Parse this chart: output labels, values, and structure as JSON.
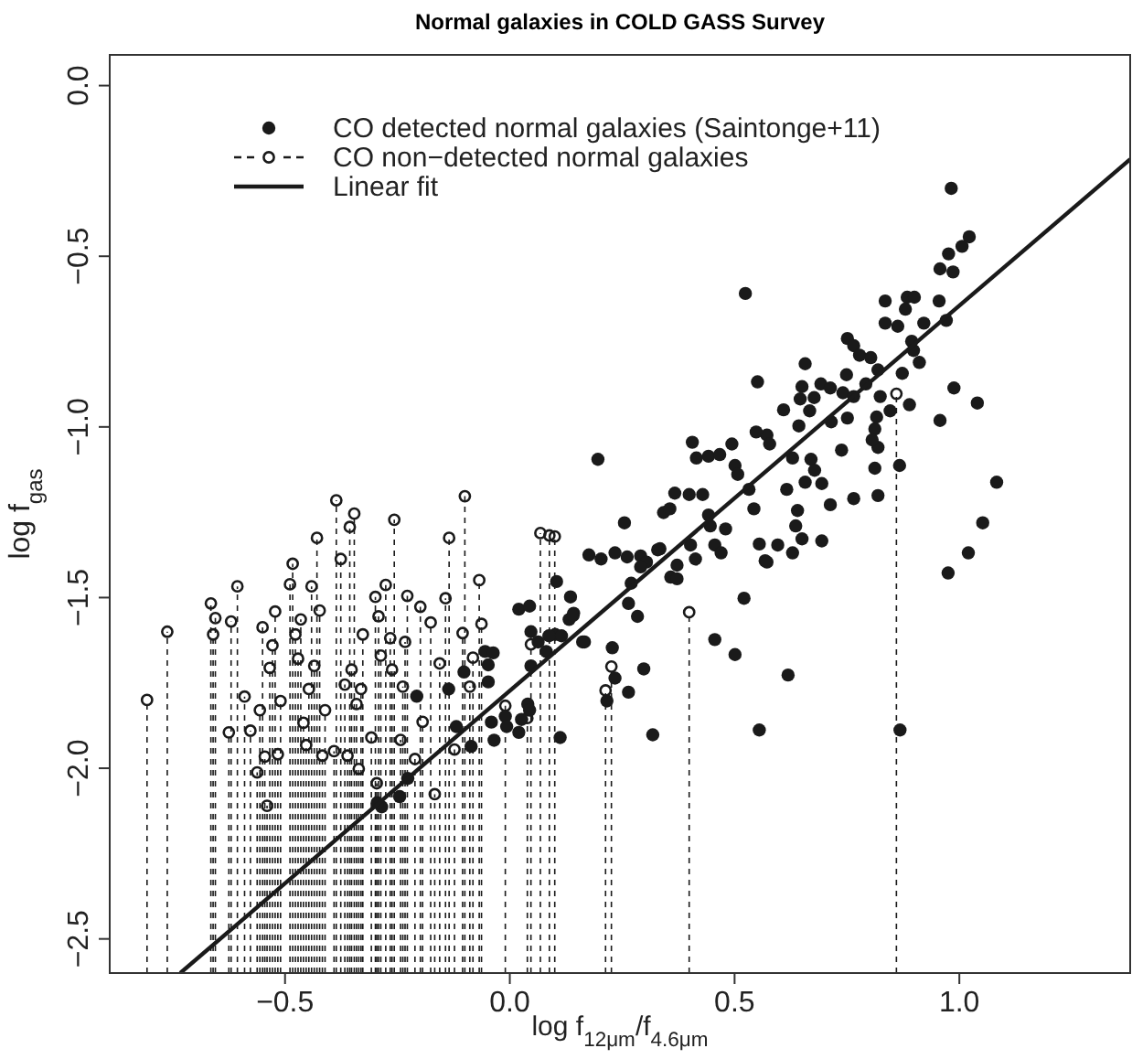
{
  "chart_data": {
    "type": "scatter",
    "title": "Normal galaxies in COLD GASS Survey",
    "xlabel": "log f$_{12μm}$/f$_{4.6μm}$",
    "ylabel": "log f$_{gas}$",
    "xlim": [
      -0.89,
      1.38
    ],
    "ylim": [
      -2.6,
      0.09
    ],
    "xticks": [
      {
        "value": -0.5,
        "label": "−0.5"
      },
      {
        "value": 0,
        "label": "0.0"
      },
      {
        "value": 0.5,
        "label": "0.5"
      },
      {
        "value": 1,
        "label": "1.0"
      }
    ],
    "yticks": [
      {
        "value": -2.5,
        "label": "−2.5"
      },
      {
        "value": -2,
        "label": "−2.0"
      },
      {
        "value": -1.5,
        "label": "−1.5"
      },
      {
        "value": -1,
        "label": "−1.0"
      },
      {
        "value": -0.5,
        "label": "−0.5"
      },
      {
        "value": 0,
        "label": "0.0"
      }
    ],
    "legend": "top left",
    "grid": false,
    "series": [
      {
        "name": "CO detected normal galaxies (Saintonge+11)",
        "marker": "circle",
        "color": "#1a1a1a",
        "x": [
          0.982,
          1.022,
          1.006,
          0.976,
          0.957,
          0.986,
          0.524,
          0.835,
          0.884,
          0.9,
          0.955,
          0.88,
          0.835,
          0.863,
          0.921,
          0.971,
          0.894,
          0.751,
          0.765,
          0.898,
          0.778,
          0.803,
          0.911,
          0.657,
          0.819,
          0.749,
          0.551,
          0.692,
          0.713,
          0.65,
          0.792,
          0.873,
          0.988,
          0.741,
          0.646,
          0.677,
          0.765,
          0.824,
          1.04,
          0.609,
          0.667,
          0.846,
          0.889,
          0.715,
          0.751,
          0.816,
          0.957,
          0.643,
          0.812,
          0.572,
          0.548,
          0.494,
          0.578,
          0.406,
          0.819,
          0.806,
          0.738,
          0.629,
          0.415,
          0.442,
          0.467,
          0.501,
          0.67,
          0.812,
          0.867,
          0.196,
          0.507,
          0.678,
          0.532,
          0.657,
          0.616,
          0.694,
          0.765,
          0.819,
          1.083,
          0.367,
          0.399,
          0.429,
          0.342,
          0.356,
          0.442,
          0.543,
          0.64,
          0.713,
          0.255,
          0.446,
          0.48,
          0.636,
          0.65,
          0.694,
          1.052,
          0.402,
          0.456,
          0.555,
          0.596,
          0.334,
          1.02,
          0.176,
          0.203,
          0.234,
          0.261,
          0.291,
          0.304,
          0.413,
          0.568,
          0.975,
          0.521,
          0.456,
          0.501,
          0.619,
          0.555,
          0.868,
          0.318,
          0.298,
          0.264,
          0.234,
          0.228,
          0.216,
          0.166,
          0.284,
          0.264,
          0.27,
          0.142,
          0.132,
          0.135,
          0.104,
          0.101,
          0.112,
          0.329,
          0.358,
          0.372,
          0.372,
          0.47,
          0.572,
          0.629,
          0.291,
          0.02,
          0.044,
          0.047,
          0.087,
          0.115,
          0.063,
          0.081,
          0.141,
          0.162,
          -0.055,
          -0.037,
          -0.048,
          0.047,
          -0.102,
          -0.048,
          -0.136,
          -0.207,
          0.04,
          0.044,
          0.026,
          -0.041,
          -0.01,
          -0.007,
          0.02,
          -0.035,
          -0.119,
          -0.086,
          -0.227,
          -0.245,
          -0.285,
          -0.295
        ],
        "values": [
          -0.301,
          -0.443,
          -0.471,
          -0.493,
          -0.537,
          -0.546,
          -0.609,
          -0.631,
          -0.62,
          -0.62,
          -0.631,
          -0.655,
          -0.696,
          -0.705,
          -0.696,
          -0.688,
          -0.749,
          -0.741,
          -0.762,
          -0.776,
          -0.79,
          -0.797,
          -0.811,
          -0.815,
          -0.833,
          -0.847,
          -0.868,
          -0.874,
          -0.886,
          -0.882,
          -0.874,
          -0.843,
          -0.886,
          -0.9,
          -0.918,
          -0.914,
          -0.911,
          -0.911,
          -0.93,
          -0.95,
          -0.953,
          -0.953,
          -0.935,
          -0.985,
          -0.974,
          -0.971,
          -0.981,
          -0.997,
          -1.006,
          -1.024,
          -1.015,
          -1.05,
          -1.05,
          -1.045,
          -1.06,
          -1.038,
          -1.068,
          -1.091,
          -1.091,
          -1.086,
          -1.081,
          -1.113,
          -1.095,
          -1.121,
          -1.113,
          -1.095,
          -1.139,
          -1.127,
          -1.183,
          -1.162,
          -1.183,
          -1.166,
          -1.21,
          -1.201,
          -1.162,
          -1.194,
          -1.198,
          -1.198,
          -1.251,
          -1.24,
          -1.258,
          -1.24,
          -1.245,
          -1.228,
          -1.281,
          -1.29,
          -1.299,
          -1.29,
          -1.328,
          -1.334,
          -1.281,
          -1.346,
          -1.346,
          -1.343,
          -1.346,
          -1.357,
          -1.369,
          -1.375,
          -1.387,
          -1.369,
          -1.381,
          -1.378,
          -1.396,
          -1.387,
          -1.392,
          -1.428,
          -1.502,
          -1.623,
          -1.667,
          -1.727,
          -1.888,
          -1.888,
          -1.902,
          -1.709,
          -1.777,
          -1.736,
          -1.647,
          -1.803,
          -1.63,
          -1.555,
          -1.517,
          -1.458,
          -1.546,
          -1.564,
          -1.498,
          -1.453,
          -1.608,
          -1.91,
          -1.36,
          -1.44,
          -1.445,
          -1.405,
          -1.369,
          -1.396,
          -1.369,
          -1.41,
          -1.534,
          -1.525,
          -1.6,
          -1.612,
          -1.612,
          -1.63,
          -1.658,
          -1.552,
          -1.63,
          -1.658,
          -1.662,
          -1.697,
          -1.7,
          -1.718,
          -1.747,
          -1.768,
          -1.789,
          -1.812,
          -1.83,
          -1.857,
          -1.865,
          -1.848,
          -1.878,
          -1.895,
          -1.918,
          -1.878,
          -1.936,
          -2.03,
          -2.083,
          -2.113,
          -2.101
        ]
      },
      {
        "name": "CO non−detected normal galaxies",
        "marker": "circle",
        "line_style": "dashed",
        "color": "#1a1a1a",
        "x": [
          -0.807,
          -0.762,
          -0.665,
          -0.655,
          -0.66,
          -0.62,
          -0.606,
          -0.625,
          -0.59,
          -0.577,
          -0.55,
          -0.556,
          -0.545,
          -0.534,
          -0.562,
          -0.54,
          -0.489,
          -0.483,
          -0.522,
          -0.528,
          -0.477,
          -0.465,
          -0.441,
          -0.429,
          -0.423,
          -0.435,
          -0.471,
          -0.51,
          -0.459,
          -0.447,
          -0.417,
          -0.411,
          -0.516,
          -0.453,
          -0.391,
          -0.376,
          -0.367,
          -0.356,
          -0.346,
          -0.352,
          -0.341,
          -0.361,
          -0.336,
          -0.327,
          -0.331,
          -0.308,
          -0.299,
          -0.292,
          -0.287,
          -0.276,
          -0.257,
          -0.266,
          -0.238,
          -0.228,
          -0.233,
          -0.262,
          -0.243,
          -0.296,
          -0.211,
          -0.199,
          -0.194,
          -0.176,
          -0.167,
          -0.156,
          -0.143,
          -0.135,
          -0.123,
          -0.105,
          -0.089,
          -0.082,
          -0.068,
          -0.063,
          -0.01,
          0.039,
          0.047,
          0.068,
          0.088,
          -0.386,
          -0.1,
          0.399,
          0.226,
          0.213,
          0.86,
          0.1
        ],
        "values": [
          -1.8,
          -1.6,
          -1.517,
          -1.56,
          -1.608,
          -1.57,
          -1.467,
          -1.895,
          -1.79,
          -1.89,
          -1.587,
          -1.83,
          -1.966,
          -1.706,
          -2.012,
          -2.11,
          -1.461,
          -1.401,
          -1.541,
          -1.64,
          -1.608,
          -1.564,
          -1.467,
          -1.325,
          -1.538,
          -1.7,
          -1.679,
          -1.803,
          -1.867,
          -1.768,
          -1.963,
          -1.83,
          -1.959,
          -1.932,
          -1.95,
          -1.387,
          -1.755,
          -1.293,
          -1.254,
          -1.711,
          -1.812,
          -1.963,
          -2.002,
          -1.608,
          -1.768,
          -1.91,
          -1.498,
          -1.555,
          -1.67,
          -1.463,
          -1.272,
          -1.619,
          -1.761,
          -1.495,
          -1.63,
          -1.711,
          -1.917,
          -2.044,
          -1.973,
          -1.527,
          -1.864,
          -1.573,
          -2.076,
          -1.693,
          -1.502,
          -1.325,
          -1.945,
          -1.604,
          -1.761,
          -1.676,
          -1.449,
          -1.577,
          -1.817,
          -1.853,
          -1.637,
          -1.311,
          -1.318,
          -1.215,
          -1.203,
          -1.543,
          -1.702,
          -1.772,
          -0.903,
          -1.321
        ],
        "errors": [
          [
            -2.6,
            -1.8
          ],
          [
            -2.6,
            -1.6
          ],
          [
            -2.6,
            -1.517
          ],
          [
            -2.6,
            -1.56
          ],
          [
            -2.6,
            -1.608
          ],
          [
            -2.6,
            -1.57
          ],
          [
            -2.6,
            -1.467
          ],
          [
            -2.6,
            -1.895
          ],
          [
            -2.6,
            -1.79
          ],
          [
            -2.6,
            -1.89
          ],
          [
            -2.6,
            -1.587
          ],
          [
            -2.6,
            -1.83
          ],
          [
            -2.6,
            -1.966
          ],
          [
            -2.6,
            -1.706
          ],
          [
            -2.6,
            -2.012
          ],
          [
            -2.6,
            -2.11
          ],
          [
            -2.6,
            -1.461
          ],
          [
            -2.6,
            -1.401
          ],
          [
            -2.6,
            -1.541
          ],
          [
            -2.6,
            -1.64
          ],
          [
            -2.6,
            -1.608
          ],
          [
            -2.6,
            -1.564
          ],
          [
            -2.6,
            -1.467
          ],
          [
            -2.6,
            -1.325
          ],
          [
            -2.6,
            -1.538
          ],
          [
            -2.6,
            -1.7
          ],
          [
            -2.6,
            -1.679
          ],
          [
            -2.6,
            -1.803
          ],
          [
            -2.6,
            -1.867
          ],
          [
            -2.6,
            -1.768
          ],
          [
            -2.6,
            -1.963
          ],
          [
            -2.6,
            -1.83
          ],
          [
            -2.6,
            -1.959
          ],
          [
            -2.6,
            -1.932
          ],
          [
            -2.6,
            -1.95
          ],
          [
            -2.6,
            -1.387
          ],
          [
            -2.6,
            -1.755
          ],
          [
            -2.6,
            -1.293
          ],
          [
            -2.6,
            -1.254
          ],
          [
            -2.6,
            -1.711
          ],
          [
            -2.6,
            -1.812
          ],
          [
            -2.6,
            -1.963
          ],
          [
            -2.6,
            -2.002
          ],
          [
            -2.6,
            -1.608
          ],
          [
            -2.6,
            -1.768
          ],
          [
            -2.6,
            -1.91
          ],
          [
            -2.6,
            -1.498
          ],
          [
            -2.6,
            -1.555
          ],
          [
            -2.6,
            -1.67
          ],
          [
            -2.6,
            -1.463
          ],
          [
            -2.6,
            -1.272
          ],
          [
            -2.6,
            -1.619
          ],
          [
            -2.6,
            -1.761
          ],
          [
            -2.6,
            -1.495
          ],
          [
            -2.6,
            -1.63
          ],
          [
            -2.6,
            -1.711
          ],
          [
            -2.6,
            -1.917
          ],
          [
            -2.6,
            -2.044
          ],
          [
            -2.6,
            -1.973
          ],
          [
            -2.6,
            -1.527
          ],
          [
            -2.6,
            -1.864
          ],
          [
            -2.6,
            -1.573
          ],
          [
            -2.6,
            -2.076
          ],
          [
            -2.6,
            -1.693
          ],
          [
            -2.6,
            -1.502
          ],
          [
            -2.6,
            -1.325
          ],
          [
            -2.6,
            -1.945
          ],
          [
            -2.6,
            -1.604
          ],
          [
            -2.6,
            -1.761
          ],
          [
            -2.6,
            -1.676
          ],
          [
            -2.6,
            -1.449
          ],
          [
            -2.6,
            -1.577
          ],
          [
            -2.6,
            -1.817
          ],
          [
            -2.6,
            -1.853
          ],
          [
            -2.6,
            -1.637
          ],
          [
            -2.6,
            -1.311
          ],
          [
            -2.6,
            -1.318
          ],
          [
            -2.6,
            -1.215
          ],
          [
            -2.6,
            -1.203
          ],
          [
            -2.6,
            -1.543
          ],
          [
            -2.6,
            -1.702
          ],
          [
            -2.6,
            -1.772
          ],
          [
            -2.6,
            -0.903
          ],
          [
            -2.6,
            -1.321
          ]
        ]
      },
      {
        "name": "Linear fit",
        "type": "line",
        "marker": "none",
        "line_style": "solid",
        "color": "#1a1a1a",
        "x": [
          -0.733,
          1.38
        ],
        "values": [
          -2.6,
          -0.216
        ]
      }
    ]
  }
}
